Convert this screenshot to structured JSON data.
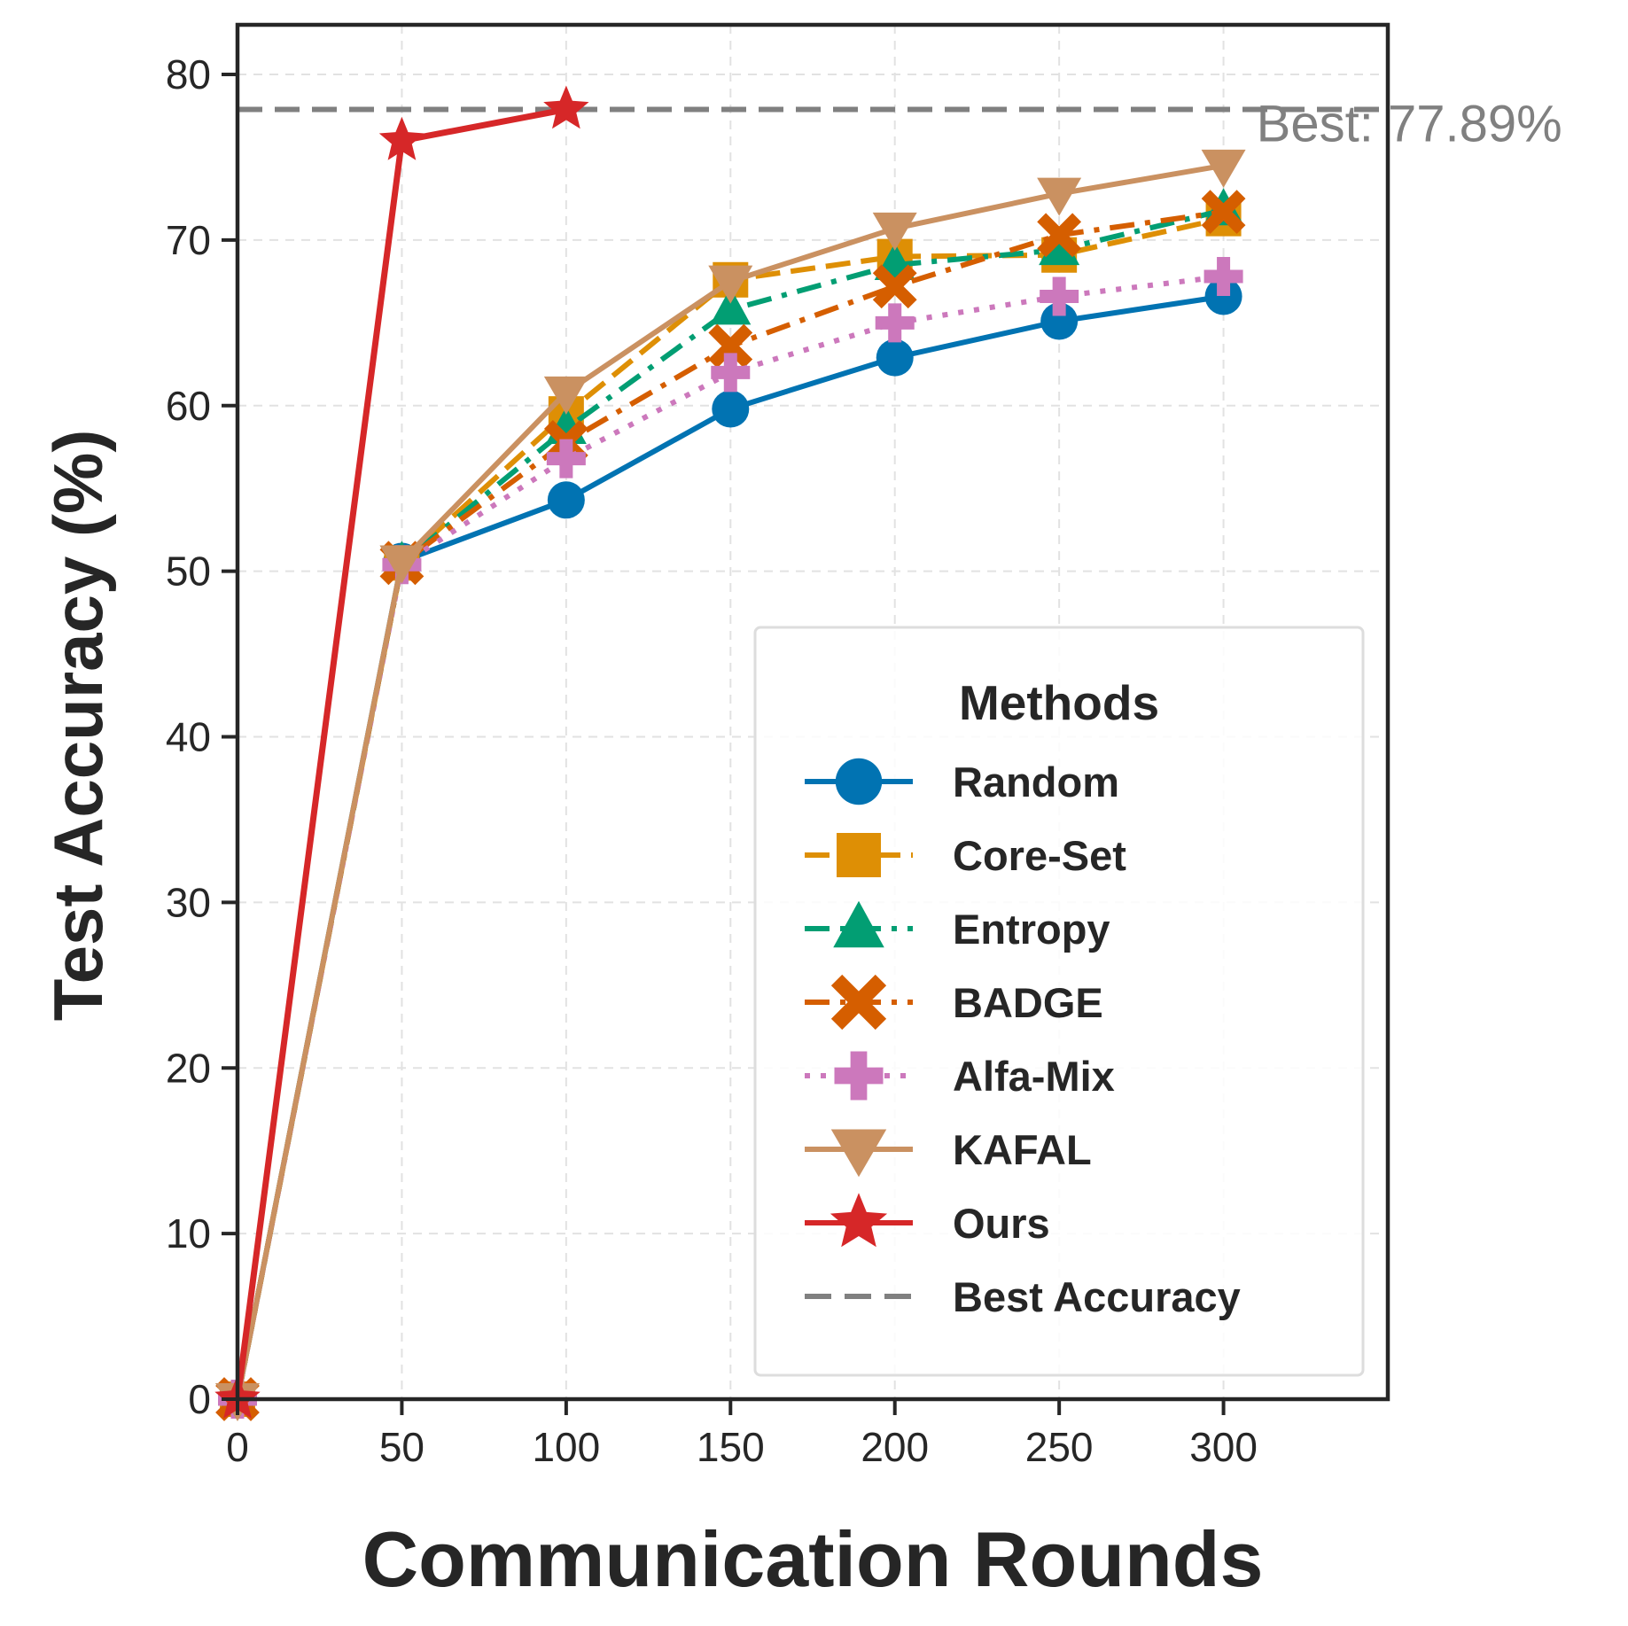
{
  "chart_data": {
    "type": "line",
    "xlabel": "Communication Rounds",
    "ylabel": "Test Accuracy (%)",
    "xlim": [
      0,
      350
    ],
    "ylim": [
      0,
      83
    ],
    "x_ticks": [
      0,
      50,
      100,
      150,
      200,
      250,
      300
    ],
    "y_ticks": [
      0,
      10,
      20,
      30,
      40,
      50,
      60,
      70,
      80
    ],
    "grid": true,
    "legend": {
      "title": "Methods",
      "placement": "lower-right"
    },
    "series": [
      {
        "name": "Random",
        "color": "#0173b2",
        "marker": "circle",
        "dash": "solid",
        "x": [
          0,
          50,
          100,
          150,
          200,
          250,
          300
        ],
        "y": [
          0,
          50.6,
          54.3,
          59.8,
          62.9,
          65.1,
          66.6
        ]
      },
      {
        "name": "Core-Set",
        "color": "#de8f05",
        "marker": "square",
        "dash": "dashed",
        "x": [
          0,
          50,
          100,
          150,
          200,
          250,
          300
        ],
        "y": [
          0,
          50.5,
          59.5,
          67.6,
          69.0,
          69.1,
          71.3
        ]
      },
      {
        "name": "Entropy",
        "color": "#029e73",
        "marker": "triangle-up",
        "dash": "dashdot",
        "x": [
          0,
          50,
          100,
          150,
          200,
          250,
          300
        ],
        "y": [
          0,
          50.5,
          58.6,
          65.8,
          68.5,
          69.4,
          71.8
        ]
      },
      {
        "name": "BADGE",
        "color": "#d55e00",
        "marker": "x",
        "dash": "dashdot",
        "x": [
          0,
          50,
          100,
          150,
          200,
          250,
          300
        ],
        "y": [
          0,
          50.5,
          57.8,
          63.6,
          67.2,
          70.3,
          71.7
        ]
      },
      {
        "name": "Alfa-Mix",
        "color": "#cc78bc",
        "marker": "plus",
        "dash": "dotted",
        "x": [
          0,
          50,
          100,
          150,
          200,
          250,
          300
        ],
        "y": [
          0,
          50.4,
          56.8,
          62.0,
          65.0,
          66.6,
          67.8
        ]
      },
      {
        "name": "KAFAL",
        "color": "#ca9161",
        "marker": "triangle-down",
        "dash": "solid",
        "x": [
          0,
          50,
          100,
          150,
          200,
          250,
          300
        ],
        "y": [
          0,
          50.6,
          60.8,
          67.5,
          70.7,
          72.8,
          74.5
        ]
      },
      {
        "name": "Ours",
        "color": "#d62728",
        "marker": "star",
        "dash": "solid",
        "x": [
          0,
          50,
          100
        ],
        "y": [
          0,
          76.0,
          77.89
        ]
      }
    ],
    "reference_line": {
      "name": "Best Accuracy",
      "y": 77.89,
      "color": "#808080",
      "dash": "dashed"
    },
    "annotation": {
      "text": "Best: 77.89%",
      "x": 310,
      "y": 77.89,
      "color": "#808080"
    }
  }
}
